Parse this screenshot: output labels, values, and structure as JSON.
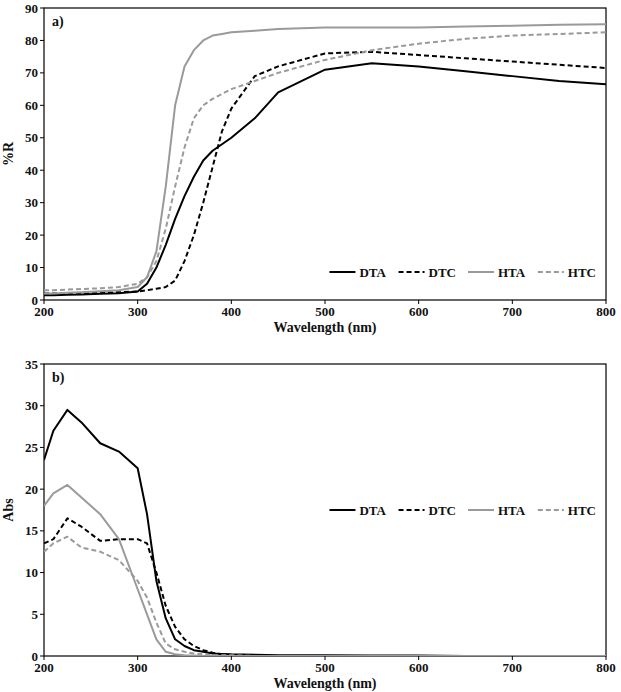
{
  "chart_data": [
    {
      "type": "line",
      "panel": "a)",
      "x_label": "Wavelength (nm)",
      "y_label": "%R",
      "x": [
        200,
        210,
        225,
        240,
        260,
        280,
        300,
        310,
        320,
        330,
        340,
        350,
        360,
        370,
        380,
        390,
        400,
        425,
        450,
        500,
        550,
        600,
        650,
        700,
        750,
        800
      ],
      "xlim": [
        200,
        800
      ],
      "xticks": [
        200,
        300,
        400,
        500,
        600,
        700,
        800
      ],
      "ylim": [
        0,
        90
      ],
      "yticks": [
        0,
        10,
        20,
        30,
        40,
        50,
        60,
        70,
        80,
        90
      ],
      "legend": "lower right",
      "series": [
        {
          "name": "DTA",
          "color": "#000000",
          "line_style": "solid",
          "values": [
            1.5,
            1.5,
            1.6,
            1.7,
            1.9,
            2.1,
            2.6,
            5,
            10,
            17,
            25,
            32,
            38,
            43,
            46,
            48,
            50,
            56,
            64,
            71,
            73,
            72,
            70.5,
            69,
            67.5,
            66.5
          ]
        },
        {
          "name": "DTC",
          "color": "#000000",
          "line_style": "dashed",
          "values": [
            2,
            2,
            2,
            2,
            2.2,
            2.4,
            2.6,
            3,
            3.5,
            4,
            6,
            12,
            20,
            30,
            41,
            52,
            59,
            69,
            72,
            76,
            76.5,
            75.5,
            74.5,
            73.5,
            72.5,
            71.5
          ]
        },
        {
          "name": "HTA",
          "color": "#9a9a9a",
          "line_style": "solid",
          "values": [
            2,
            2,
            2.2,
            2.4,
            2.7,
            3,
            4,
            7,
            15,
            35,
            60,
            72,
            77,
            80,
            81.5,
            82,
            82.5,
            83,
            83.5,
            84,
            84,
            84,
            84.3,
            84.5,
            84.8,
            85
          ]
        },
        {
          "name": "HTC",
          "color": "#9a9a9a",
          "line_style": "dashed",
          "values": [
            3,
            3,
            3.2,
            3.4,
            3.6,
            4,
            5,
            7,
            12,
            22,
            35,
            47,
            56,
            60,
            62,
            63.5,
            65,
            67.5,
            70,
            74,
            77,
            79,
            80.5,
            81.5,
            82,
            82.5
          ]
        }
      ]
    },
    {
      "type": "line",
      "panel": "b)",
      "x_label": "Wavelength (nm)",
      "y_label": "Abs",
      "x": [
        200,
        210,
        225,
        240,
        260,
        280,
        300,
        310,
        320,
        330,
        340,
        350,
        360,
        370,
        380,
        390,
        400,
        425,
        450,
        500,
        550,
        600,
        650,
        700,
        750,
        800
      ],
      "xlim": [
        200,
        800
      ],
      "xticks": [
        200,
        300,
        400,
        500,
        600,
        700,
        800
      ],
      "ylim": [
        0,
        35
      ],
      "yticks": [
        0,
        5,
        10,
        15,
        20,
        25,
        30,
        35
      ],
      "legend": "center right",
      "series": [
        {
          "name": "DTA",
          "color": "#000000",
          "line_style": "solid",
          "values": [
            23.5,
            27,
            29.5,
            28,
            25.5,
            24.5,
            22.5,
            17,
            9,
            4.5,
            2,
            1.2,
            0.7,
            0.5,
            0.3,
            0.25,
            0.2,
            0.15,
            0.1,
            0.1,
            0.05,
            0.05,
            0,
            0,
            0,
            0
          ]
        },
        {
          "name": "DTC",
          "color": "#000000",
          "line_style": "dashed",
          "values": [
            13.5,
            14,
            16.5,
            15.5,
            13.8,
            14,
            14,
            13.5,
            10,
            6,
            3.5,
            2,
            1.2,
            0.7,
            0.4,
            0.2,
            0.1,
            0.1,
            0,
            0,
            0,
            0,
            0,
            0,
            0,
            0
          ]
        },
        {
          "name": "HTA",
          "color": "#9a9a9a",
          "line_style": "solid",
          "values": [
            18,
            19.5,
            20.5,
            19,
            17,
            14,
            8,
            5,
            2,
            0.5,
            0.2,
            0.1,
            0.05,
            0,
            0,
            0,
            0,
            0,
            0,
            0,
            0,
            0,
            0,
            0,
            0,
            0
          ]
        },
        {
          "name": "HTC",
          "color": "#9a9a9a",
          "line_style": "dashed",
          "values": [
            12.5,
            13.5,
            14.3,
            13,
            12.5,
            11.5,
            9,
            7,
            4,
            1.5,
            0.8,
            0.5,
            0.3,
            0.2,
            0.1,
            0.1,
            0.1,
            0,
            0,
            0,
            0,
            0,
            0,
            0,
            0,
            0
          ]
        }
      ]
    }
  ]
}
